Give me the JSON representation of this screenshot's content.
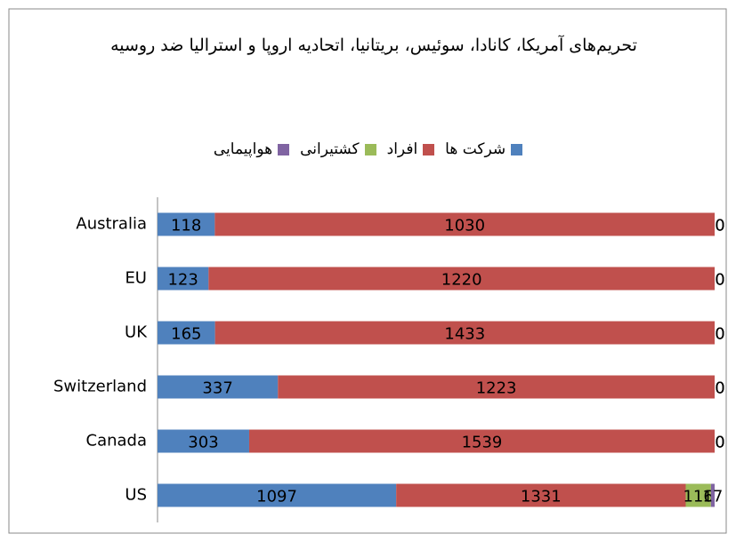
{
  "chart_data": {
    "type": "bar",
    "orientation": "horizontal",
    "stacking": "percent",
    "title": "تحریم‌های آمریکا، کانادا، سوئیس، بریتانیا، اتحادیه اروپا و استرالیا ضد روسیه",
    "categories": [
      "Australia",
      "EU",
      "UK",
      "Switzerland",
      "Canada",
      "US"
    ],
    "series": [
      {
        "name": "شرکت ها",
        "color": "#4f81bd",
        "values": [
          118,
          123,
          165,
          337,
          303,
          1097
        ]
      },
      {
        "name": "افراد",
        "color": "#c0504d",
        "values": [
          1030,
          1220,
          1433,
          1223,
          1539,
          1331
        ]
      },
      {
        "name": "کشتیرانی",
        "color": "#9bbb59",
        "values": [
          0,
          0,
          0,
          0,
          0,
          116
        ]
      },
      {
        "name": "هواپیمایی",
        "color": "#8064a2",
        "values": [
          0,
          0,
          0,
          0,
          0,
          17
        ]
      }
    ]
  }
}
